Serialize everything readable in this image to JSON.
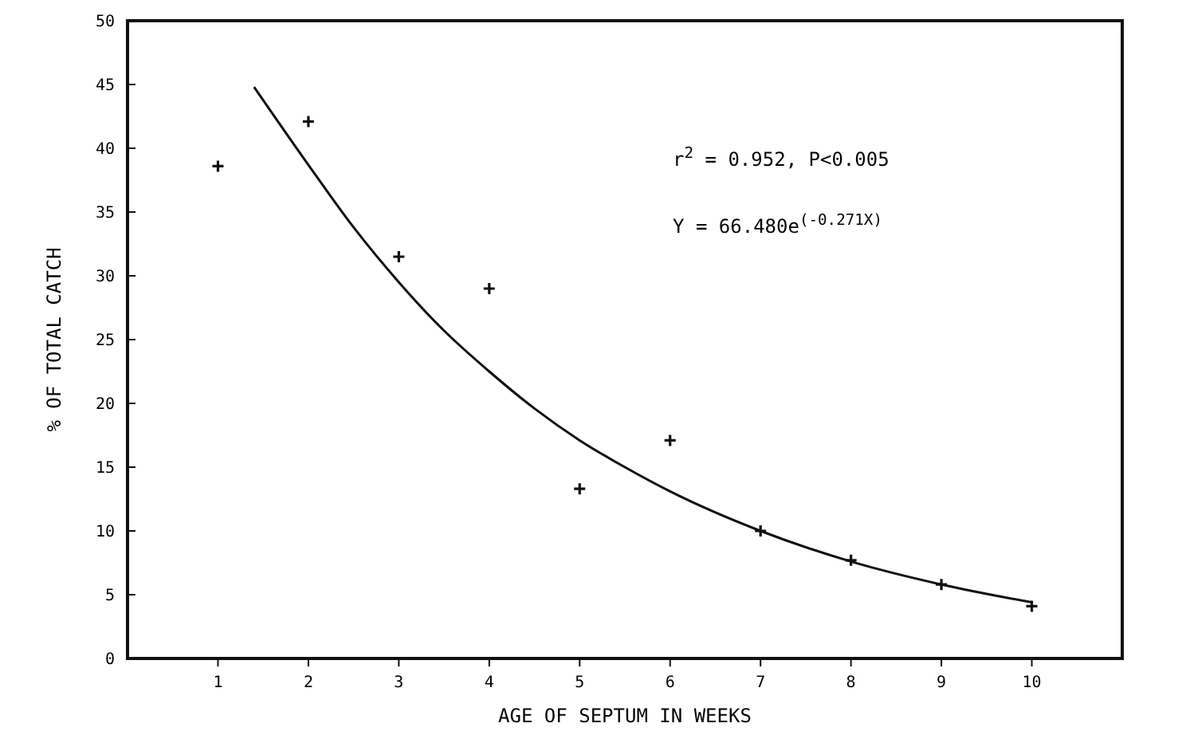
{
  "chart_data": {
    "type": "scatter",
    "xlabel": "AGE OF SEPTUM IN WEEKS",
    "ylabel": "% OF TOTAL CATCH",
    "xlim": [
      0,
      11
    ],
    "xticks": [
      1,
      2,
      3,
      4,
      5,
      6,
      7,
      8,
      9,
      10
    ],
    "ylim": [
      0,
      50
    ],
    "yticks": [
      0,
      5,
      10,
      15,
      20,
      25,
      30,
      35,
      40,
      45,
      50
    ],
    "grid": false,
    "annotations": [
      "r$^{2}$ = 0.952, P<0.005",
      "Y = 66.480e$^{(-0.271X)}$"
    ],
    "series": [
      {
        "color": "#111111",
        "marker": "cross",
        "x": [
          1,
          2,
          3,
          4,
          5,
          6,
          7,
          8,
          9,
          10
        ],
        "values": [
          38.6,
          42.1,
          31.5,
          29,
          13.3,
          17.1,
          10,
          7.7,
          5.8,
          4.1
        ]
      },
      {
        "type": "line",
        "color": "#111111",
        "line_style": "solid",
        "marker": "none",
        "x": [
          1.4,
          2,
          2.5,
          3,
          3.5,
          4,
          4.5,
          5,
          5.5,
          6,
          7,
          8,
          9,
          10
        ],
        "values": [
          44.8,
          38.7,
          33.8,
          29.5,
          25.7,
          22.5,
          19.6,
          17.1,
          15.0,
          13.1,
          10.0,
          7.6,
          5.8,
          4.4
        ]
      }
    ]
  }
}
